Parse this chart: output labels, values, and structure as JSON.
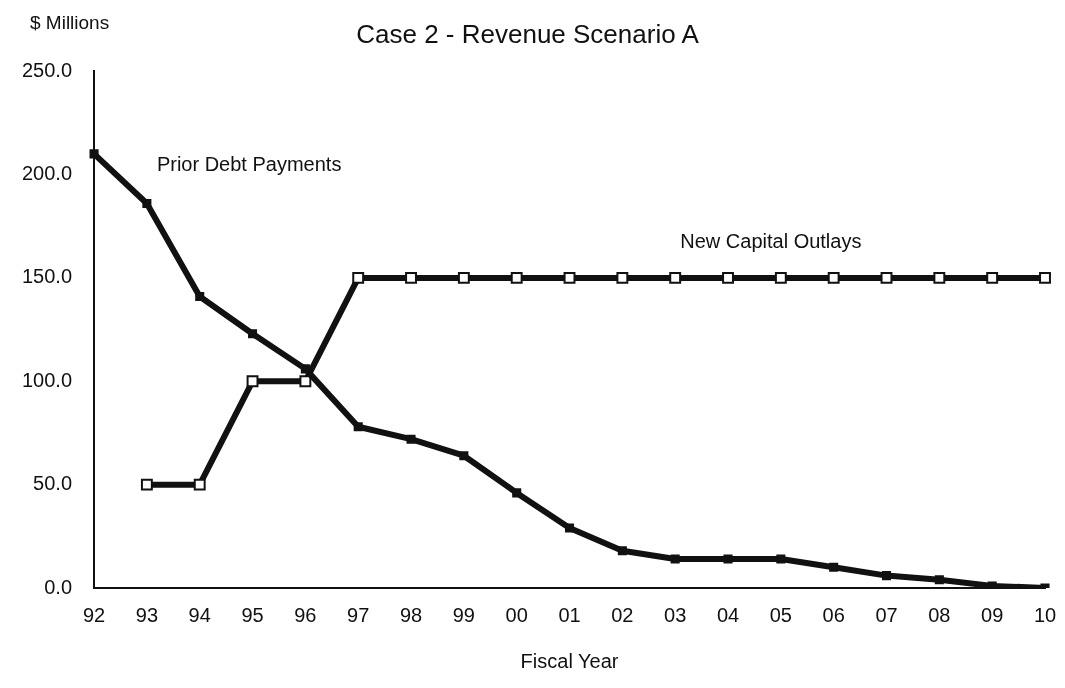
{
  "chart_data": {
    "type": "line",
    "title": "Case 2 - Revenue Scenario A",
    "xlabel": "Fiscal Year",
    "ylabel": "$ Millions",
    "categories": [
      "92",
      "93",
      "94",
      "95",
      "96",
      "97",
      "98",
      "99",
      "00",
      "01",
      "02",
      "03",
      "04",
      "05",
      "06",
      "07",
      "08",
      "09",
      "10"
    ],
    "series": [
      {
        "name": "Prior Debt Payments",
        "color": "#111111",
        "values": [
          210,
          186,
          141,
          123,
          106,
          78,
          72,
          64,
          46,
          29,
          18,
          14,
          14,
          14,
          10,
          6,
          4,
          1,
          0
        ]
      },
      {
        "name": "New Capital Outlays",
        "color": "#111111",
        "values": [
          null,
          50,
          50,
          100,
          100,
          150,
          150,
          150,
          150,
          150,
          150,
          150,
          150,
          150,
          150,
          150,
          150,
          150,
          150
        ]
      }
    ],
    "ylim": [
      0,
      250
    ],
    "yticks": [
      {
        "value": 0,
        "label": "0.0"
      },
      {
        "value": 50,
        "label": "50.0"
      },
      {
        "value": 100,
        "label": "100.0"
      },
      {
        "value": 150,
        "label": "150.0"
      },
      {
        "value": 200,
        "label": "200.0"
      },
      {
        "value": 250,
        "label": "250.0"
      }
    ],
    "grid": false,
    "legend": false,
    "marker": "square",
    "line_style": "solid"
  }
}
